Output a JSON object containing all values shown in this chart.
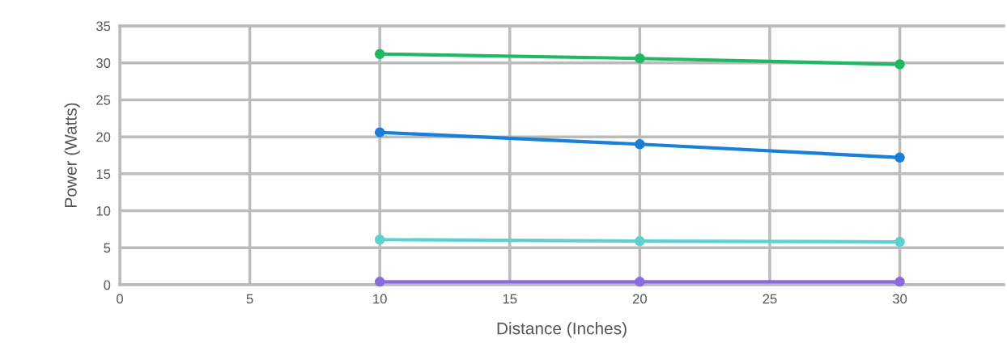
{
  "chart_data": {
    "type": "line",
    "xlabel": "Distance (Inches)",
    "ylabel": "Power (Watts)",
    "x": [
      10,
      20,
      30
    ],
    "series": [
      {
        "color": "#20b865",
        "values": [
          31.2,
          30.6,
          29.8
        ]
      },
      {
        "color": "#1a7fd6",
        "values": [
          20.6,
          19.0,
          17.2
        ]
      },
      {
        "color": "#5fd0d0",
        "values": [
          6.1,
          5.9,
          5.8
        ]
      },
      {
        "color": "#8c6be0",
        "values": [
          0.4,
          0.4,
          0.4
        ]
      }
    ],
    "xlim": [
      0,
      34
    ],
    "xticks": [
      0,
      5,
      10,
      15,
      20,
      25,
      30
    ],
    "ylim": [
      0,
      35
    ],
    "yticks": [
      0,
      5,
      10,
      15,
      20,
      25,
      30,
      35
    ],
    "grid": true,
    "marker": "circle",
    "line_style": "solid"
  }
}
